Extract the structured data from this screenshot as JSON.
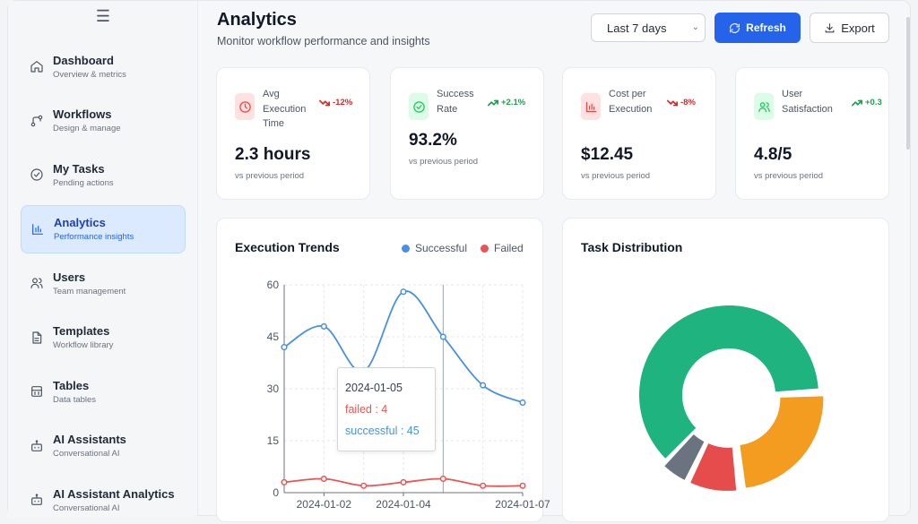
{
  "sidebar": {
    "menu_icon": "☰",
    "items": [
      {
        "label": "Dashboard",
        "sub": "Overview & metrics",
        "icon": "home-icon"
      },
      {
        "label": "Workflows",
        "sub": "Design & manage",
        "icon": "workflow-icon"
      },
      {
        "label": "My Tasks",
        "sub": "Pending actions",
        "icon": "check-circle-icon"
      },
      {
        "label": "Analytics",
        "sub": "Performance insights",
        "icon": "bar-chart-icon",
        "active": true
      },
      {
        "label": "Users",
        "sub": "Team management",
        "icon": "users-icon"
      },
      {
        "label": "Templates",
        "sub": "Workflow library",
        "icon": "file-icon"
      },
      {
        "label": "Tables",
        "sub": "Data tables",
        "icon": "table-icon"
      },
      {
        "label": "AI Assistants",
        "sub": "Conversational AI",
        "icon": "bot-icon"
      },
      {
        "label": "AI Assistant Analytics",
        "sub": "Conversational AI",
        "icon": "bot-icon"
      }
    ]
  },
  "header": {
    "title": "Analytics",
    "subtitle": "Monitor workflow performance and insights",
    "range": "Last 7 days",
    "refresh_label": "Refresh",
    "export_label": "Export"
  },
  "metrics": [
    {
      "title": "Avg Execution Time",
      "change": "-12%",
      "trend": "down",
      "value": "2.3 hours",
      "note": "vs previous period",
      "icon": "clock-icon",
      "color": "#ef4444",
      "bg": "#fee2e2"
    },
    {
      "title": "Success Rate",
      "change": "+2.1%",
      "trend": "up",
      "value": "93.2%",
      "note": "vs previous period",
      "icon": "check-circle-icon",
      "color": "#22c55e",
      "bg": "#dcfce7"
    },
    {
      "title": "Cost per Execution",
      "change": "-8%",
      "trend": "down",
      "value": "$12.45",
      "note": "vs previous period",
      "icon": "bar-chart-icon",
      "color": "#ef4444",
      "bg": "#fee2e2"
    },
    {
      "title": "User Satisfaction",
      "change": "+0.3",
      "trend": "up",
      "value": "4.8/5",
      "note": "vs previous period",
      "icon": "users-icon",
      "color": "#22c55e",
      "bg": "#dcfce7"
    }
  ],
  "colors": {
    "accent": "#2563eb",
    "success": "#4a90e2",
    "failed": "#e85555",
    "up": "#16a34a",
    "down": "#dc2626"
  },
  "trends": {
    "title": "Execution Trends",
    "tooltip": {
      "date": "2024-01-05",
      "failed": "failed : 4",
      "successful": "successful : 45"
    }
  },
  "distribution": {
    "title": "Task Distribution"
  },
  "chart_data": [
    {
      "type": "line",
      "title": "Execution Trends",
      "x": [
        "2024-01-01",
        "2024-01-02",
        "2024-01-03",
        "2024-01-04",
        "2024-01-05",
        "2024-01-06",
        "2024-01-07"
      ],
      "x_ticks": [
        "2024-01-02",
        "2024-01-04",
        "2024-01-07"
      ],
      "y_ticks": [
        0,
        15,
        30,
        45,
        60
      ],
      "ylim": [
        0,
        60
      ],
      "grid": true,
      "legend": "top-right",
      "series": [
        {
          "name": "Successful",
          "color": "#4a90e2",
          "values": [
            42,
            48,
            35,
            58,
            45,
            31,
            26
          ]
        },
        {
          "name": "Failed",
          "color": "#e85555",
          "values": [
            3,
            4,
            2,
            3,
            4,
            2,
            2
          ]
        }
      ]
    },
    {
      "type": "pie",
      "title": "Task Distribution",
      "slices": [
        {
          "value": 62,
          "color": "#1fb37f"
        },
        {
          "value": 24,
          "color": "#f39c1f"
        },
        {
          "value": 9,
          "color": "#e74c4c"
        },
        {
          "value": 5,
          "color": "#6b7280"
        }
      ]
    }
  ]
}
